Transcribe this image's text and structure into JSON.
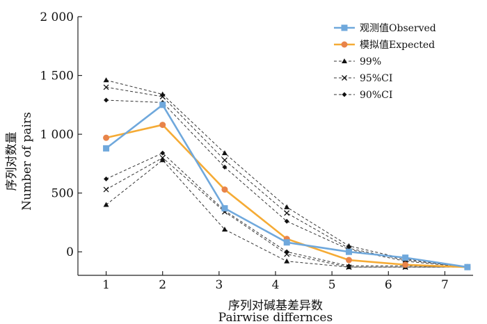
{
  "chart_data": {
    "type": "line",
    "x": [
      1,
      2,
      3,
      4,
      5,
      6,
      7
    ],
    "xlim": [
      0.5,
      7.5
    ],
    "ylim": [
      -200,
      2000
    ],
    "yticks": [
      0,
      500,
      1000,
      1500,
      2000
    ],
    "ytick_labels": [
      "0",
      "500",
      "1 000",
      "1 500",
      "2 000"
    ],
    "xticks": [
      1,
      2,
      3,
      4,
      5,
      6,
      7
    ],
    "xtick_labels": [
      "1",
      "2",
      "3",
      "4",
      "5",
      "6",
      "7"
    ],
    "xlabel_cn": "序列对碱基差异数",
    "xlabel_en": "Pairwise differnces",
    "ylabel_cn": "序列对数量",
    "ylabel_en": "Number of pairs",
    "legend_position": "top-right",
    "series": [
      {
        "name": "观测值Observed",
        "kind": "observed",
        "color": "#6fa8dc",
        "marker": "square",
        "x": [
          1,
          2,
          3.1,
          4.2,
          5.3,
          6.3,
          7.4
        ],
        "values": [
          880,
          1250,
          370,
          80,
          0,
          -50,
          -130
        ]
      },
      {
        "name": "模拟值Expected",
        "kind": "expected",
        "color": "#f5ab35",
        "marker": "circle",
        "x": [
          1,
          2,
          3.1,
          4.2,
          5.3,
          6.3,
          7.4
        ],
        "values": [
          970,
          1080,
          530,
          110,
          -70,
          -110,
          -130
        ]
      },
      {
        "name": "99%",
        "kind": "ci",
        "color": "#333333",
        "marker": "triangle",
        "x": [
          1,
          2,
          3.1,
          4.2,
          5.3,
          6.3,
          7.4
        ],
        "values": [
          1460,
          1340,
          840,
          380,
          50,
          -60,
          -130
        ]
      },
      {
        "name": "95%CI",
        "kind": "ci",
        "color": "#333333",
        "marker": "x",
        "x": [
          1,
          2,
          3.1,
          4.2,
          5.3,
          6.3,
          7.4
        ],
        "values": [
          1400,
          1320,
          780,
          330,
          30,
          -70,
          -130
        ]
      },
      {
        "name": "90%CI",
        "kind": "ci",
        "color": "#333333",
        "marker": "diamond",
        "x": [
          1,
          2,
          3.1,
          4.2,
          5.3,
          6.3,
          7.4
        ],
        "values": [
          1290,
          1270,
          720,
          260,
          20,
          -80,
          -130
        ]
      },
      {
        "name": "",
        "kind": "ci",
        "color": "#333333",
        "marker": "diamond",
        "legend": false,
        "x": [
          1,
          2,
          3.1,
          4.2,
          5.3,
          6.3,
          7.4
        ],
        "values": [
          620,
          840,
          350,
          0,
          -120,
          -120,
          -130
        ]
      },
      {
        "name": "",
        "kind": "ci",
        "color": "#333333",
        "marker": "x",
        "legend": false,
        "x": [
          1,
          2,
          3.1,
          4.2,
          5.3,
          6.3,
          7.4
        ],
        "values": [
          530,
          800,
          340,
          -20,
          -130,
          -130,
          -130
        ]
      },
      {
        "name": "",
        "kind": "ci",
        "color": "#333333",
        "marker": "triangle",
        "legend": false,
        "x": [
          1,
          2,
          3.1,
          4.2,
          5.3,
          6.3,
          7.4
        ],
        "values": [
          400,
          780,
          190,
          -80,
          -130,
          -130,
          -130
        ]
      }
    ]
  }
}
